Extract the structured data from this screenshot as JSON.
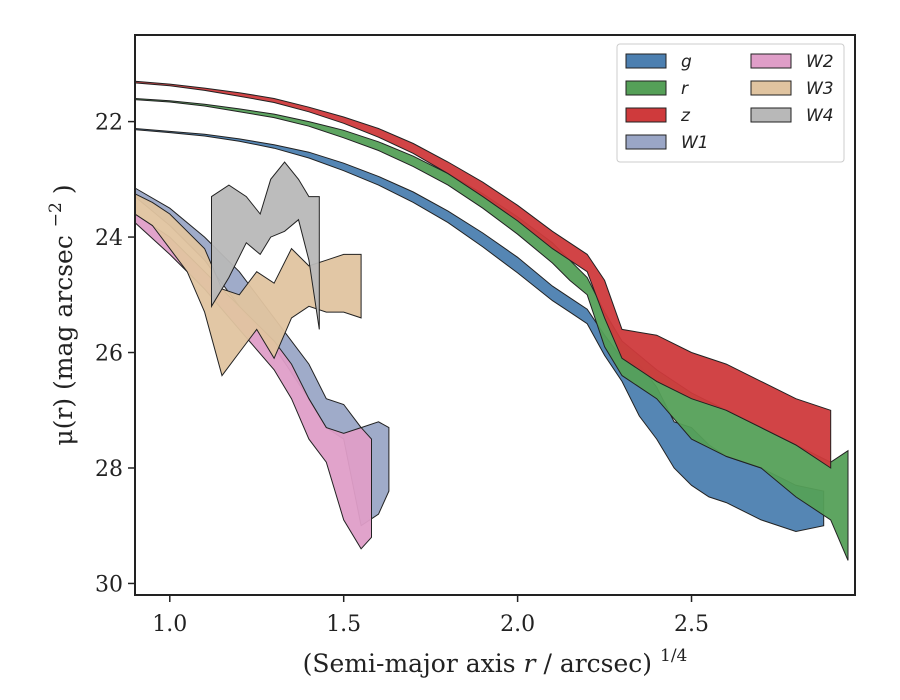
{
  "chart_data": {
    "type": "area",
    "xlabel": "(Semi-major axis r / arcsec)",
    "xlabel_italic_part": "r",
    "xlabel_superscript": "1/4",
    "ylabel": "μ(r) (mag arcsec",
    "ylabel_superscript": "−2",
    "xlim": [
      0.9,
      2.97
    ],
    "ylim": [
      30.2,
      20.5
    ],
    "y_inverted": true,
    "x_ticks": [
      1.0,
      1.5,
      2.0,
      2.5
    ],
    "x_tick_labels": [
      "1.0",
      "1.5",
      "2.0",
      "2.5"
    ],
    "y_ticks": [
      22,
      24,
      26,
      28,
      30
    ],
    "y_tick_labels": [
      "22",
      "24",
      "26",
      "28",
      "30"
    ],
    "grid": false,
    "legend_position": "top-right",
    "legend_columns": 2,
    "series": [
      {
        "name": "g",
        "color": "#4c7fb0",
        "points": [
          [
            0.9,
            22.12,
            22.14
          ],
          [
            1.0,
            22.17,
            22.19
          ],
          [
            1.1,
            22.22,
            22.25
          ],
          [
            1.2,
            22.3,
            22.34
          ],
          [
            1.3,
            22.4,
            22.46
          ],
          [
            1.4,
            22.53,
            22.63
          ],
          [
            1.5,
            22.72,
            22.85
          ],
          [
            1.6,
            22.95,
            23.1
          ],
          [
            1.7,
            23.22,
            23.4
          ],
          [
            1.8,
            23.55,
            23.75
          ],
          [
            1.9,
            23.93,
            24.17
          ],
          [
            2.0,
            24.35,
            24.62
          ],
          [
            2.1,
            24.85,
            25.1
          ],
          [
            2.15,
            25.05,
            25.3
          ],
          [
            2.2,
            25.25,
            25.5
          ],
          [
            2.25,
            25.7,
            26.05
          ],
          [
            2.3,
            26.1,
            26.5
          ],
          [
            2.35,
            26.2,
            27.1
          ],
          [
            2.4,
            26.6,
            27.5
          ],
          [
            2.45,
            27.2,
            28.0
          ],
          [
            2.5,
            27.3,
            28.3
          ],
          [
            2.55,
            27.6,
            28.5
          ],
          [
            2.6,
            27.8,
            28.6
          ],
          [
            2.7,
            28.0,
            28.9
          ],
          [
            2.8,
            28.3,
            29.1
          ],
          [
            2.88,
            28.4,
            29.0
          ]
        ]
      },
      {
        "name": "r",
        "color": "#55a058",
        "points": [
          [
            0.9,
            21.6,
            21.62
          ],
          [
            1.0,
            21.64,
            21.66
          ],
          [
            1.1,
            21.7,
            21.73
          ],
          [
            1.2,
            21.78,
            21.83
          ],
          [
            1.3,
            21.87,
            21.93
          ],
          [
            1.4,
            22.0,
            22.08
          ],
          [
            1.5,
            22.15,
            22.28
          ],
          [
            1.6,
            22.35,
            22.5
          ],
          [
            1.7,
            22.6,
            22.78
          ],
          [
            1.8,
            22.9,
            23.1
          ],
          [
            1.9,
            23.25,
            23.5
          ],
          [
            2.0,
            23.65,
            23.95
          ],
          [
            2.1,
            24.1,
            24.45
          ],
          [
            2.15,
            24.4,
            24.75
          ],
          [
            2.2,
            24.7,
            25.0
          ],
          [
            2.25,
            25.3,
            25.9
          ],
          [
            2.3,
            25.8,
            26.4
          ],
          [
            2.4,
            26.3,
            26.8
          ],
          [
            2.5,
            26.7,
            27.5
          ],
          [
            2.6,
            27.0,
            27.8
          ],
          [
            2.7,
            27.3,
            28.0
          ],
          [
            2.8,
            27.6,
            28.5
          ],
          [
            2.9,
            27.9,
            28.9
          ],
          [
            2.95,
            27.7,
            29.6
          ]
        ]
      },
      {
        "name": "z",
        "color": "#cf3a3c",
        "points": [
          [
            0.9,
            21.3,
            21.33
          ],
          [
            1.0,
            21.35,
            21.38
          ],
          [
            1.1,
            21.42,
            21.46
          ],
          [
            1.2,
            21.5,
            21.56
          ],
          [
            1.3,
            21.6,
            21.67
          ],
          [
            1.4,
            21.75,
            21.83
          ],
          [
            1.5,
            21.92,
            22.03
          ],
          [
            1.6,
            22.12,
            22.27
          ],
          [
            1.7,
            22.38,
            22.55
          ],
          [
            1.8,
            22.7,
            22.9
          ],
          [
            1.9,
            23.05,
            23.3
          ],
          [
            2.0,
            23.45,
            23.72
          ],
          [
            2.1,
            23.9,
            24.2
          ],
          [
            2.2,
            24.3,
            24.6
          ],
          [
            2.25,
            24.75,
            25.4
          ],
          [
            2.3,
            25.6,
            26.1
          ],
          [
            2.4,
            25.7,
            26.5
          ],
          [
            2.5,
            26.0,
            26.8
          ],
          [
            2.6,
            26.2,
            27.0
          ],
          [
            2.7,
            26.5,
            27.3
          ],
          [
            2.8,
            26.8,
            27.6
          ],
          [
            2.9,
            27.0,
            28.0
          ]
        ]
      },
      {
        "name": "W1",
        "color": "#9aa6c6",
        "points": [
          [
            0.9,
            23.15,
            23.3
          ],
          [
            1.0,
            23.5,
            23.8
          ],
          [
            1.1,
            24.0,
            24.4
          ],
          [
            1.2,
            24.6,
            25.2
          ],
          [
            1.3,
            25.4,
            25.9
          ],
          [
            1.4,
            26.2,
            26.8
          ],
          [
            1.45,
            26.8,
            27.3
          ],
          [
            1.5,
            26.9,
            27.5
          ],
          [
            1.55,
            27.3,
            29.0
          ],
          [
            1.6,
            27.2,
            28.8
          ],
          [
            1.63,
            27.3,
            28.4
          ]
        ]
      },
      {
        "name": "W2",
        "color": "#df9ec8",
        "points": [
          [
            0.9,
            23.6,
            23.75
          ],
          [
            1.0,
            24.0,
            24.3
          ],
          [
            1.1,
            24.6,
            24.9
          ],
          [
            1.2,
            25.2,
            25.6
          ],
          [
            1.3,
            25.8,
            26.3
          ],
          [
            1.35,
            26.2,
            26.8
          ],
          [
            1.4,
            26.8,
            27.5
          ],
          [
            1.45,
            27.3,
            27.9
          ],
          [
            1.5,
            27.4,
            28.9
          ],
          [
            1.55,
            27.3,
            29.4
          ],
          [
            1.58,
            27.5,
            29.2
          ]
        ]
      },
      {
        "name": "W3",
        "color": "#e0c4a0",
        "points": [
          [
            0.9,
            23.25,
            23.6
          ],
          [
            0.95,
            23.4,
            23.8
          ],
          [
            1.0,
            23.6,
            24.2
          ],
          [
            1.05,
            23.9,
            24.6
          ],
          [
            1.1,
            24.2,
            25.3
          ],
          [
            1.15,
            24.9,
            26.4
          ],
          [
            1.2,
            25.0,
            26.0
          ],
          [
            1.25,
            24.6,
            25.6
          ],
          [
            1.3,
            24.8,
            26.1
          ],
          [
            1.35,
            24.2,
            25.4
          ],
          [
            1.4,
            24.5,
            25.2
          ],
          [
            1.45,
            24.4,
            25.3
          ],
          [
            1.5,
            24.3,
            25.3
          ],
          [
            1.55,
            24.3,
            25.4
          ]
        ]
      },
      {
        "name": "W4",
        "color": "#b8b8b8",
        "points": [
          [
            1.12,
            23.3,
            25.2
          ],
          [
            1.17,
            23.1,
            24.7
          ],
          [
            1.22,
            23.3,
            24.1
          ],
          [
            1.26,
            23.6,
            24.3
          ],
          [
            1.29,
            23.0,
            24.0
          ],
          [
            1.33,
            22.7,
            23.9
          ],
          [
            1.37,
            23.0,
            23.7
          ],
          [
            1.4,
            23.3,
            24.4
          ],
          [
            1.43,
            23.3,
            25.6
          ]
        ]
      }
    ]
  }
}
